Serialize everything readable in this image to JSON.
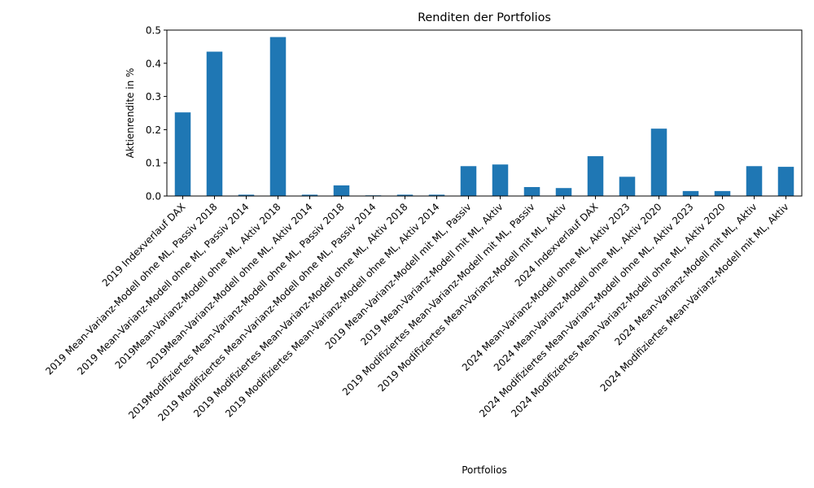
{
  "chart_data": {
    "type": "bar",
    "title": "Renditen der Portfolios",
    "xlabel": "Portfolios",
    "ylabel": "Aktienrendite in %",
    "ylim": [
      0,
      0.5
    ],
    "yticks": [
      "0.0",
      "0.1",
      "0.2",
      "0.3",
      "0.4",
      "0.5"
    ],
    "bar_color": "#1f77b4",
    "grid": false,
    "legend": "none",
    "categories": [
      "2019 Indexverlauf DAX",
      "2019 Mean-Varianz-Modell ohne ML, Passiv 2018",
      "2019 Mean-Varianz-Modell ohne ML, Passiv 2014",
      "2019Mean-Varianz-Modell ohne ML, Aktiv 2018",
      "2019Mean-Varianz-Modell ohne ML, Aktiv 2014",
      "2019Modifiziertes Mean-Varianz-Modell ohne ML, Passiv 2018",
      "2019 Modifiziertes Mean-Varianz-Modell ohne ML, Passiv 2014",
      "2019 Modifiziertes Mean-Varianz-Modell ohne ML, Aktiv 2018",
      "2019 Modifiziertes Mean-Varianz-Modell ohne ML, Aktiv 2014",
      "2019 Mean-Varianz-Modell mit ML, Passiv",
      "2019 Mean-Varianz-Modell mit ML, Aktiv",
      "2019 Modifiziertes Mean-Varianz-Modell mit ML, Passiv",
      "2019 Modifiziertes Mean-Varianz-Modell mit ML, Aktiv",
      "2024 Indexverlauf DAX",
      "2024 Mean-Varianz-Modell ohne ML, Aktiv 2023",
      "2024 Mean-Varianz-Modell ohne ML, Aktiv 2020",
      "2024 Modifiziertes Mean-Varianz-Modell ohne ML, Aktiv 2023",
      "2024 Modifiziertes Mean-Varianz-Modell ohne ML, Aktiv 2020",
      "2024 Mean-Varianz-Modell mit ML, Aktiv",
      "2024 Modifiziertes Mean-Varianz-Modell mit ML, Aktiv"
    ],
    "values": [
      0.252,
      0.435,
      0.004,
      0.479,
      0.004,
      0.032,
      0.002,
      0.004,
      0.004,
      0.09,
      0.095,
      0.027,
      0.024,
      0.12,
      0.058,
      0.203,
      0.015,
      0.015,
      0.09,
      0.088
    ]
  }
}
